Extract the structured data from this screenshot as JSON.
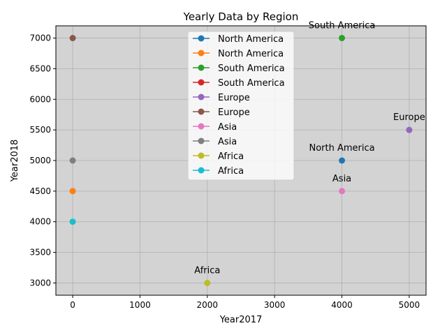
{
  "chart_data": {
    "type": "line",
    "title": "Yearly Data by Region",
    "xlabel": "Year2017",
    "ylabel": "Year2018",
    "xlim": [
      -250,
      5250
    ],
    "ylim": [
      2800,
      7200
    ],
    "xticks": [
      0,
      1000,
      2000,
      3000,
      4000,
      5000
    ],
    "yticks": [
      3000,
      3500,
      4000,
      4500,
      5000,
      5500,
      6000,
      6500,
      7000
    ],
    "grid": true,
    "plot_background": "#d3d3d3",
    "legend_position": "upper center",
    "series": [
      {
        "name": "North America",
        "color": "#1f77b4",
        "points": [
          [
            4000,
            5000
          ]
        ]
      },
      {
        "name": "North America",
        "color": "#ff7f0e",
        "points": [
          [
            0,
            4500
          ]
        ]
      },
      {
        "name": "South America",
        "color": "#2ca02c",
        "points": [
          [
            4000,
            7000
          ]
        ]
      },
      {
        "name": "South America",
        "color": "#d62728",
        "points": []
      },
      {
        "name": "Europe",
        "color": "#9467bd",
        "points": [
          [
            5000,
            5500
          ]
        ]
      },
      {
        "name": "Europe",
        "color": "#8c564b",
        "points": [
          [
            0,
            7000
          ]
        ]
      },
      {
        "name": "Asia",
        "color": "#e377c2",
        "points": [
          [
            4000,
            4500
          ]
        ]
      },
      {
        "name": "Asia",
        "color": "#7f7f7f",
        "points": [
          [
            0,
            5000
          ]
        ]
      },
      {
        "name": "Africa",
        "color": "#bcbd22",
        "points": [
          [
            2000,
            3000
          ]
        ]
      },
      {
        "name": "Africa",
        "color": "#17becf",
        "points": [
          [
            0,
            4000
          ]
        ]
      }
    ],
    "annotations": [
      {
        "text": "South America",
        "x": 4000,
        "y": 7000
      },
      {
        "text": "Europe",
        "x": 5000,
        "y": 5500
      },
      {
        "text": "North America",
        "x": 4000,
        "y": 5000
      },
      {
        "text": "Asia",
        "x": 4000,
        "y": 4500
      },
      {
        "text": "Africa",
        "x": 2000,
        "y": 3000
      }
    ]
  }
}
